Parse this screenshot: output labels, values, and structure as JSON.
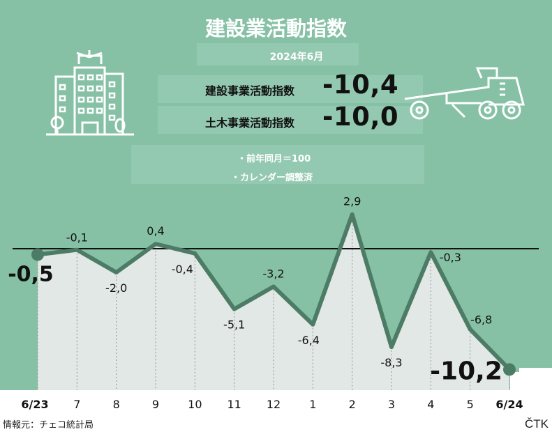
{
  "title": "建設業活動指数",
  "period": "2024年6月",
  "indices": [
    {
      "label": "建設事業活動指数",
      "value": "-10,4"
    },
    {
      "label": "土木事業活動指数",
      "value": "-10,0"
    }
  ],
  "notes": [
    "・前年同月＝100",
    "・カレンダー調整済"
  ],
  "source": "情報元：チェコ統計局",
  "brand": "ČTK",
  "colors": {
    "panel": "#86c1a6",
    "line": "#4d7c66",
    "fill": "#e2e8e5",
    "text": "#111111"
  },
  "icons": [
    "building-icon",
    "road-grader-icon"
  ],
  "chart_data": {
    "type": "line",
    "categories": [
      "6/23",
      "7",
      "8",
      "9",
      "10",
      "11",
      "12",
      "1",
      "2",
      "3",
      "4",
      "5",
      "6/24"
    ],
    "series": [
      {
        "values": [
          -0.5,
          -0.1,
          -2.0,
          0.4,
          -0.4,
          -5.1,
          -3.2,
          -6.4,
          2.9,
          -8.3,
          -0.3,
          -6.8,
          -10.2
        ]
      }
    ],
    "value_labels": [
      "-0,5",
      "-0,1",
      "-2,0",
      "0,4",
      "-0,4",
      "-5,1",
      "-3,2",
      "-6,4",
      "2,9",
      "-8,3",
      "-0,3",
      "-6,8",
      "-10,2"
    ],
    "baseline": 0,
    "ylim": [
      -11.5,
      3.5
    ],
    "grid": "vertical dotted lines",
    "legend": "none"
  }
}
